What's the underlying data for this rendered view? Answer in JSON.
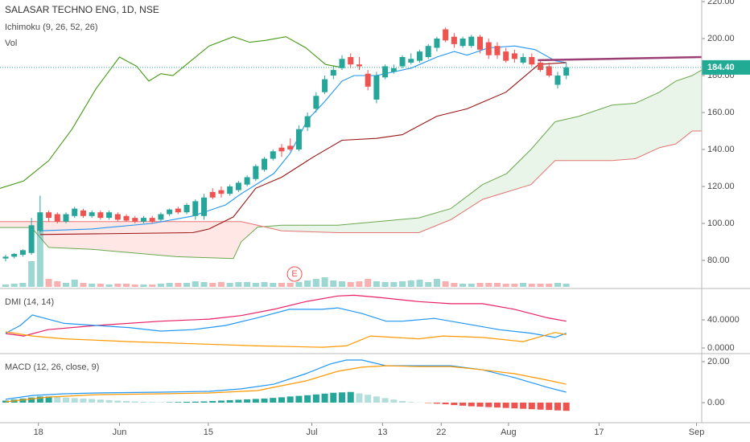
{
  "chart_data": [
    {
      "type": "candlestick",
      "title": "SALASAR TECHNO ENG, 1D, NSE",
      "labels": [
        "Ichimoku (9, 26, 52, 26)",
        "Vol"
      ],
      "xlim": [
        -0.65,
        80.7
      ],
      "xticks": [
        {
          "value": 3.8,
          "label": "18"
        },
        {
          "value": 13.2,
          "label": "Jun"
        },
        {
          "value": 23.5,
          "label": "15"
        },
        {
          "value": 35.5,
          "label": "Jul"
        },
        {
          "value": 43.7,
          "label": "13"
        },
        {
          "value": 50.5,
          "label": "22"
        },
        {
          "value": 58.3,
          "label": "Aug"
        },
        {
          "value": 68.8,
          "label": "17"
        },
        {
          "value": 80.1,
          "label": "Sep"
        }
      ],
      "ylim": [
        65.65,
        220.87
      ],
      "yticks": [
        {
          "value": 80,
          "label": "80.00"
        },
        {
          "value": 100,
          "label": "100.00"
        },
        {
          "value": 120,
          "label": "120.00"
        },
        {
          "value": 140,
          "label": "140.00"
        },
        {
          "value": 160,
          "label": "160.00"
        },
        {
          "value": 180,
          "label": "180.00"
        },
        {
          "value": 200,
          "label": "200.00"
        },
        {
          "value": 220,
          "label": "220.00"
        }
      ],
      "up_color": "#26a69a",
      "down_color": "#ef5350",
      "x": [
        0,
        1,
        2,
        3,
        4,
        5,
        6,
        7,
        8,
        9,
        10,
        11,
        12,
        13,
        14,
        15,
        16,
        17,
        18,
        19,
        20,
        21,
        22,
        23,
        24,
        25,
        26,
        27,
        28,
        29,
        30,
        31,
        32,
        33,
        34,
        35,
        36,
        37,
        38,
        39,
        40,
        41,
        42,
        43,
        44,
        45,
        46,
        47,
        48,
        49,
        50,
        51,
        52,
        53,
        54,
        55,
        56,
        57,
        58,
        59,
        60,
        61,
        62,
        63,
        64,
        65
      ],
      "open": [
        81,
        82,
        83,
        84,
        96,
        106,
        105,
        101,
        104,
        107,
        104,
        106,
        103,
        105,
        104,
        103,
        101,
        103,
        102,
        105,
        108,
        106,
        104,
        104,
        117,
        118,
        116,
        118,
        121,
        124,
        129,
        135,
        141,
        142,
        140,
        152,
        162,
        171,
        180,
        184,
        190,
        186,
        181,
        167,
        179,
        182,
        185,
        187,
        188,
        190,
        195,
        205,
        201,
        196,
        196,
        201,
        198,
        196,
        193,
        192,
        187,
        190,
        187,
        185,
        175,
        180
      ],
      "high": [
        83,
        84,
        86,
        103,
        115,
        107,
        106,
        106,
        109,
        108,
        107,
        107,
        107,
        106,
        105,
        104,
        104,
        104,
        106,
        108,
        109,
        111,
        113,
        116,
        119,
        120,
        121,
        123,
        126,
        132,
        136,
        140,
        143,
        146,
        153,
        160,
        171,
        180,
        185,
        191,
        192,
        190,
        183,
        182,
        186,
        186,
        191,
        192,
        194,
        197,
        201,
        206,
        203,
        201,
        202,
        202,
        200,
        198,
        195,
        194,
        192,
        192,
        188,
        187,
        182,
        187
      ],
      "low": [
        79.5,
        81,
        82,
        83,
        95,
        101,
        100,
        100,
        103,
        103,
        103,
        102,
        102,
        101,
        101,
        100,
        100,
        100,
        101,
        104,
        105,
        105,
        102,
        102,
        113,
        114,
        115,
        117,
        120,
        123,
        128,
        134,
        136,
        139,
        139,
        150,
        160,
        170,
        178,
        183,
        184,
        183,
        172,
        165,
        178,
        181,
        184,
        186,
        187,
        189,
        193,
        198,
        195,
        195,
        195,
        192,
        189,
        189,
        187,
        187,
        186,
        185,
        182,
        179,
        173,
        178
      ],
      "close": [
        82,
        83.5,
        85.5,
        99,
        106,
        103,
        101,
        105,
        108,
        104,
        106,
        103,
        106,
        102,
        101.5,
        101,
        103,
        101,
        105,
        107.5,
        106,
        110,
        112,
        114,
        114,
        116,
        120,
        122,
        125,
        131,
        135,
        139,
        139,
        140,
        151,
        158,
        169,
        178,
        183,
        189,
        186,
        185,
        174,
        180,
        185,
        184,
        190,
        189,
        193,
        196,
        200,
        199,
        197,
        200,
        201,
        194,
        191,
        191,
        188,
        189,
        190,
        186,
        183,
        180,
        180,
        184.4
      ],
      "last_price": {
        "value": 184.4,
        "label": "184.40"
      },
      "last_price_color": "#22ab94",
      "series": [
        {
          "color": "#2196f3",
          "x": [
            4,
            10,
            17,
            21.7,
            25.5,
            27.3,
            31.1,
            33,
            35,
            37,
            39,
            40.4,
            43,
            47,
            50,
            52,
            53.5,
            56,
            59,
            61.4,
            63.7,
            65
          ],
          "values": [
            96,
            97,
            100,
            104,
            110,
            116,
            127,
            138,
            156,
            166,
            177,
            180,
            180,
            184,
            190,
            193,
            191,
            195,
            196,
            194,
            188,
            187
          ]
        },
        {
          "color": "#991515",
          "x": [
            4,
            21.7,
            23.6,
            26.4,
            29,
            32,
            35.7,
            39,
            43,
            46,
            50,
            53.5,
            58,
            61.8,
            65
          ],
          "values": [
            94,
            95,
            97,
            103.5,
            119,
            125,
            136,
            145,
            146,
            148,
            158,
            162,
            171,
            186,
            187
          ]
        },
        {
          "color": "#459915",
          "x": [
            -0.65,
            2.1,
            5,
            7.7,
            10.5,
            13.2,
            15.2,
            16.6,
            18,
            19.4,
            21.5,
            23.6,
            26.4,
            28.3,
            30.1,
            32.5,
            34.8,
            37.1,
            39
          ],
          "values": [
            119,
            123,
            134,
            151,
            173,
            190,
            185,
            177,
            181,
            180,
            188,
            196,
            201,
            198,
            199,
            201,
            195,
            186,
            184.4
          ]
        }
      ],
      "cloud": {
        "x": [
          -0.65,
          3,
          5,
          10,
          19.8,
          26.4,
          27.3,
          29.2,
          32,
          38.5,
          47.9,
          51.6,
          55.3,
          58.1,
          60.9,
          63.7,
          66.5,
          70.3,
          73,
          75.8,
          77.7,
          79.6,
          80.7
        ],
        "series": [
          {
            "color": "#6aa84f",
            "values": [
              97.8,
              97.8,
              87,
              86,
              82,
              81,
              90,
              98,
              99,
              99,
              103,
              108,
              121,
              127,
              140,
              155,
              158,
              164,
              165,
              171,
              177,
              180,
              183
            ]
          },
          {
            "color": "#e57373",
            "values": [
              101,
              101,
              101,
              101,
              101,
              101,
              101,
              99,
              96,
              95,
              95,
              102,
              113,
              117,
              121,
              134,
              134,
              134,
              135,
              141,
              143,
              150,
              150
            ]
          }
        ],
        "up_fill": "rgba(76,175,80,0.13)",
        "down_fill": "rgba(244,67,54,0.13)"
      },
      "volume": {
        "vlim": [
          0,
          100
        ],
        "values": [
          3,
          4,
          5,
          32,
          80,
          10,
          7,
          5,
          9,
          5,
          4,
          4,
          3,
          4,
          4,
          3,
          3,
          3,
          4,
          5,
          5,
          5,
          7,
          6,
          5,
          6,
          5,
          6,
          6,
          5,
          6,
          5,
          5,
          5,
          6,
          8,
          10,
          12,
          8,
          7,
          6,
          7,
          10,
          7,
          6,
          6,
          7,
          8,
          9,
          6,
          10,
          7,
          5,
          4,
          4,
          5,
          5,
          5,
          4,
          4,
          5,
          4,
          4,
          4,
          5,
          4
        ]
      },
      "event": {
        "x": 33.5,
        "label": "E"
      },
      "trendline": {
        "color": "#9c3f74",
        "x": [
          61.7,
          80.7
        ],
        "values": [
          188.3,
          190
        ]
      }
    },
    {
      "type": "line",
      "title": "DMI (14, 14)",
      "ylim": [
        -6.86,
        83.43
      ],
      "yticks": [
        {
          "value": 0,
          "label": "0.0000"
        },
        {
          "value": 40,
          "label": "40.0000"
        }
      ],
      "series": [
        {
          "color": "#e91e63",
          "x": [
            0,
            2.1,
            4.9,
            10.5,
            18,
            23.6,
            27.3,
            31.1,
            34.8,
            38.5,
            40.4,
            43.2,
            47.9,
            51.6,
            55.3,
            59,
            62.8,
            65
          ],
          "values": [
            20.6,
            17,
            26,
            32,
            38,
            41,
            46,
            55,
            66,
            74,
            75,
            72,
            66,
            63,
            63,
            55,
            43,
            38
          ]
        },
        {
          "color": "#2196f3",
          "x": [
            0,
            1.7,
            3.1,
            4.9,
            6.8,
            10.5,
            14.3,
            18,
            21.7,
            25.5,
            29.2,
            32.9,
            36.7,
            38.5,
            41.3,
            44.1,
            46,
            49.7,
            53.5,
            57.2,
            60.9,
            63.7,
            65
          ],
          "values": [
            21,
            32,
            47,
            41,
            35,
            32,
            29,
            24,
            26,
            32,
            43,
            55,
            55,
            57,
            49,
            38,
            38,
            42,
            34,
            26,
            21,
            15,
            21
          ]
        },
        {
          "color": "#ff9800",
          "x": [
            0,
            3.1,
            6.8,
            14.3,
            21.7,
            29.2,
            36.7,
            39.5,
            42.3,
            45.1,
            47.9,
            50.7,
            55.3,
            60,
            63.7,
            65
          ],
          "values": [
            23,
            17,
            13,
            9,
            6,
            3,
            1,
            3,
            17,
            15,
            13,
            17,
            15,
            9,
            22,
            19
          ]
        }
      ]
    },
    {
      "type": "macd",
      "title": "MACD (12, 26, close, 9)",
      "ylim": [
        -7.45,
        23.53
      ],
      "yticks": [
        {
          "value": 0,
          "label": "0.00"
        },
        {
          "value": 20,
          "label": "20.00"
        }
      ],
      "series": [
        {
          "color": "#2196f3",
          "x": [
            0,
            3.1,
            6.8,
            10.5,
            18,
            23.6,
            27.3,
            31.1,
            34.8,
            37.6,
            39.5,
            41.3,
            44.1,
            47.9,
            51.6,
            55.3,
            59,
            62.8,
            65
          ],
          "values": [
            1.6,
            3.5,
            4.3,
            4.7,
            5.1,
            5.5,
            6.7,
            9,
            14.1,
            18.8,
            20.8,
            20.8,
            18,
            18,
            18,
            16,
            12.2,
            7.5,
            5.1
          ]
        },
        {
          "color": "#ff9800",
          "x": [
            0,
            4.9,
            10.5,
            18,
            23.6,
            29.2,
            34.8,
            38.5,
            41.3,
            44.1,
            47.9,
            51.6,
            55.3,
            59,
            62.8,
            65
          ],
          "values": [
            0.4,
            2.7,
            3.9,
            4.3,
            4.7,
            5.9,
            10.6,
            15.3,
            17.3,
            18,
            17.6,
            17.6,
            16,
            14.1,
            11,
            9
          ]
        }
      ],
      "histogram": {
        "colors": {
          "up_rising": "#26a69a",
          "up_falling": "#b2dfdb",
          "down_falling": "#ef5350",
          "down_rising": "#ffcdd2"
        },
        "values": [
          1,
          1.5,
          2,
          2.5,
          3,
          3,
          2.8,
          2.5,
          2.2,
          2,
          1.8,
          1.5,
          1.2,
          1,
          0.8,
          0.6,
          0.4,
          0.3,
          0.2,
          0.2,
          0.3,
          0.4,
          0.5,
          0.6,
          0.8,
          1,
          1.2,
          1.4,
          1.6,
          1.8,
          2,
          2.3,
          2.6,
          3,
          3.3,
          3.6,
          4,
          4.4,
          4.8,
          5,
          5.2,
          4.5,
          3.8,
          3,
          2.2,
          1.5,
          0.8,
          0.3,
          0.1,
          -0.2,
          -0.5,
          -0.8,
          -1.2,
          -1.5,
          -1.8,
          -2,
          -2.2,
          -2.4,
          -2.6,
          -2.8,
          -3,
          -3.2,
          -3.4,
          -3.6,
          -3.8,
          -4
        ]
      }
    }
  ]
}
